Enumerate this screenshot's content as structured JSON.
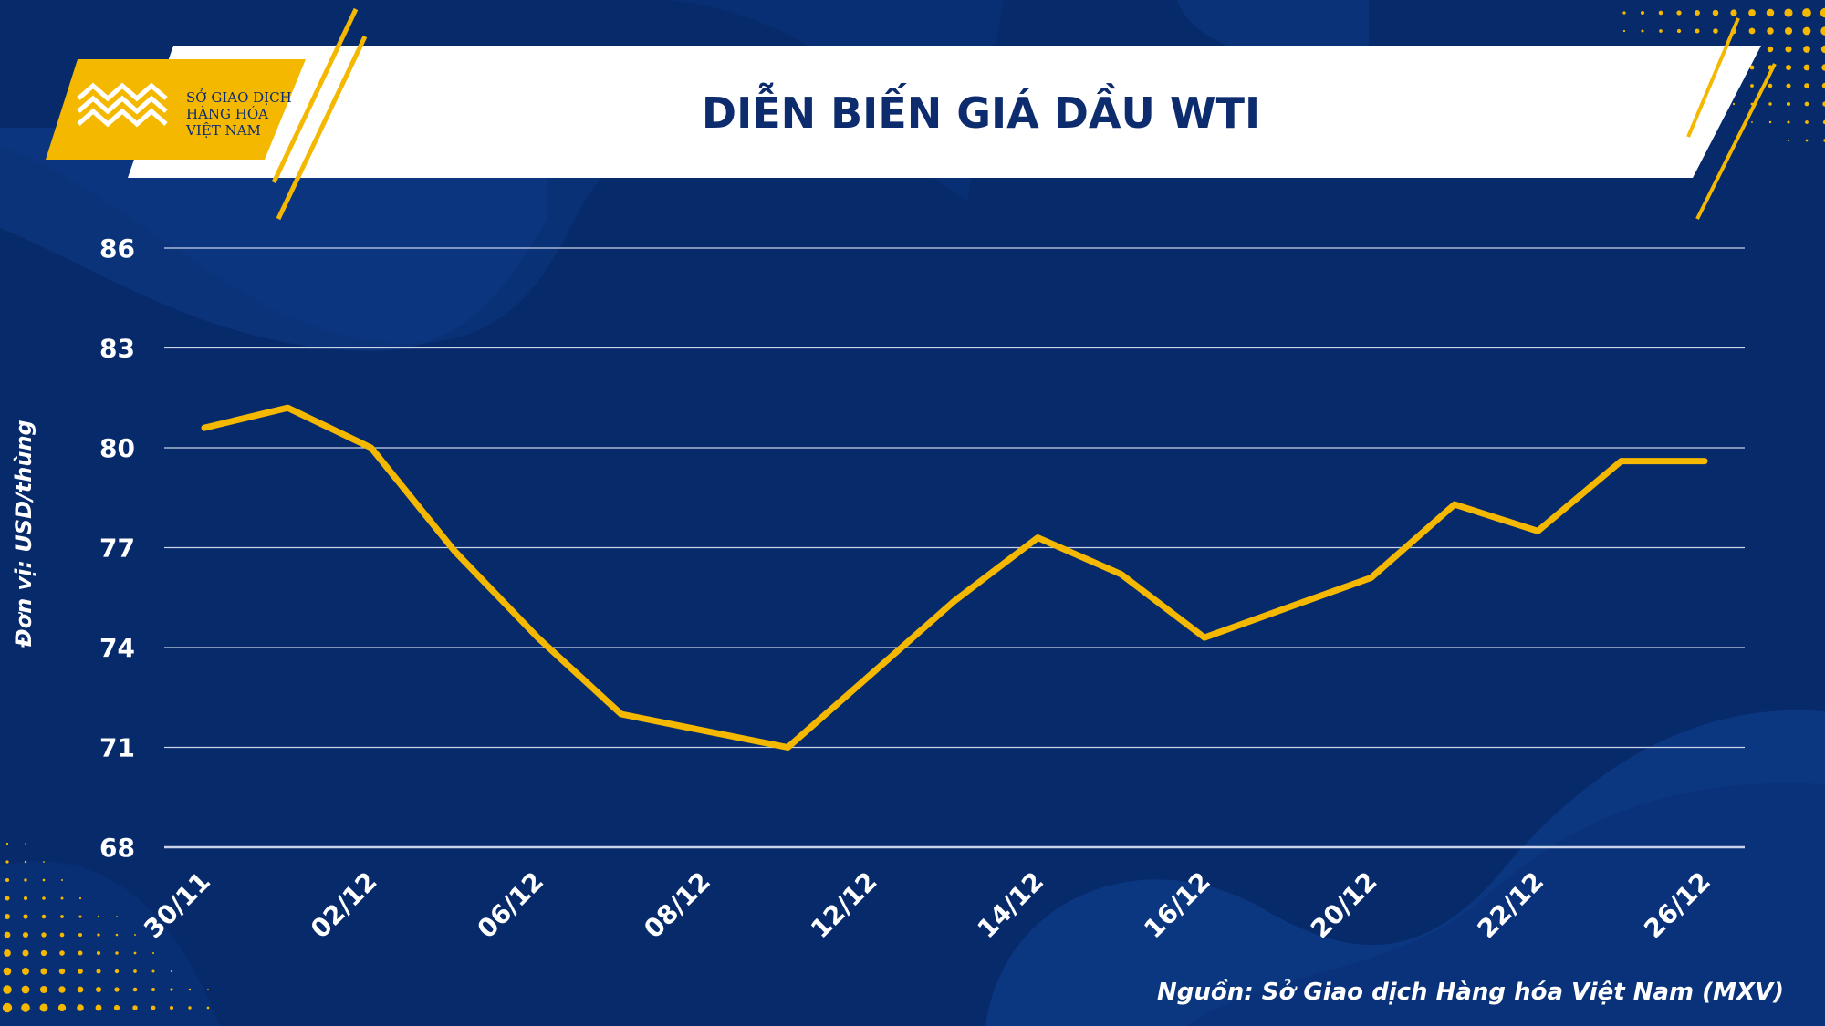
{
  "header": {
    "title": "DIỄN BIẾN GIÁ DẦU WTI",
    "logo_lines": [
      "SỞ GIAO DỊCH",
      "HÀNG HÓA",
      "VIỆT NAM"
    ]
  },
  "footer": {
    "source": "Nguồn: Sở Giao dịch Hàng hóa Việt Nam (MXV)"
  },
  "colors": {
    "background": "#072a6b",
    "line": "#f5b800",
    "accent": "#f5b800",
    "gridline": "#c9d3ea"
  },
  "chart_data": {
    "type": "line",
    "title": "DIỄN BIẾN GIÁ DẦU WTI",
    "xlabel": "",
    "ylabel": "Đơn vị: USD/thùng",
    "ylim": [
      68,
      86
    ],
    "yticks": [
      "86",
      "83",
      "80",
      "77",
      "74",
      "71",
      "68"
    ],
    "ytick_values": [
      86,
      83,
      80,
      77,
      74,
      71,
      68
    ],
    "grid": true,
    "x": [
      "30/11",
      "",
      "02/12",
      "",
      "06/12",
      "",
      "08/12",
      "",
      "12/12",
      "",
      "14/12",
      "",
      "16/12",
      "",
      "20/12",
      "",
      "22/12",
      "",
      "26/12"
    ],
    "series": [
      {
        "values": [
          80.6,
          81.2,
          80.0,
          76.9,
          74.3,
          72.0,
          71.5,
          71.0,
          73.2,
          75.4,
          77.3,
          76.2,
          74.3,
          75.2,
          76.1,
          78.3,
          77.5,
          79.6,
          79.6
        ]
      }
    ]
  }
}
